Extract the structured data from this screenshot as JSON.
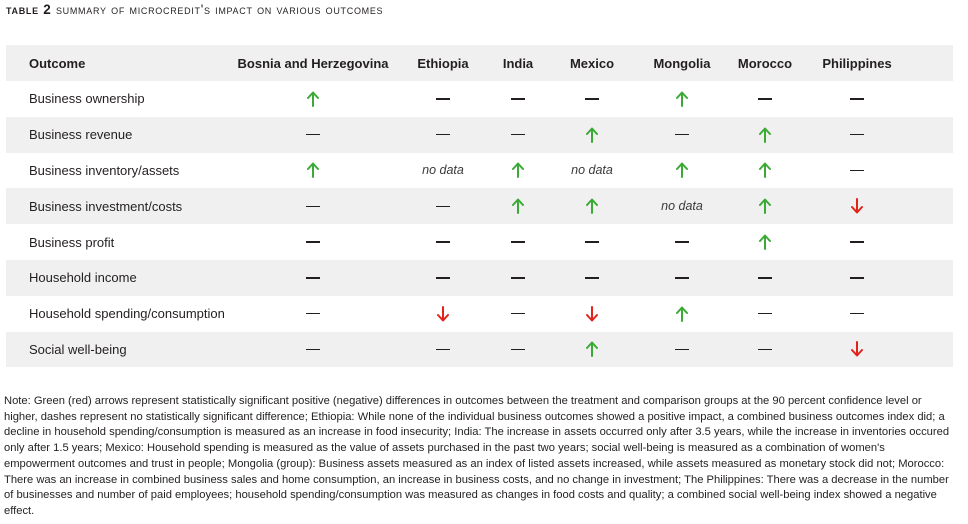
{
  "caption": {
    "label": "table 2",
    "title": "summary of microcredit's impact on various outcomes"
  },
  "colors": {
    "positive": "#3aaa35",
    "negative": "#e2231a",
    "shade": "#f0f0f0"
  },
  "table": {
    "headers": [
      "Outcome",
      "Bosnia and Herzegovina",
      "Ethiopia",
      "India",
      "Mexico",
      "Mongolia",
      "Morocco",
      "Philippines"
    ],
    "legend": {
      "up": "positive significant (green arrow)",
      "down": "negative significant (red arrow)",
      "dash": "no significant difference",
      "nodata": "no data"
    },
    "rows": [
      {
        "outcome": "Business ownership",
        "values": [
          "up",
          "dash",
          "dash",
          "dash",
          "up",
          "dash",
          "dash"
        ]
      },
      {
        "outcome": "Business revenue",
        "values": [
          "dash",
          "dash",
          "dash",
          "up",
          "dash",
          "up",
          "dash"
        ]
      },
      {
        "outcome": "Business inventory/assets",
        "values": [
          "up",
          "no data",
          "up",
          "no data",
          "up",
          "up",
          "dash"
        ]
      },
      {
        "outcome": "Business investment/costs",
        "values": [
          "dash",
          "dash",
          "up",
          "up",
          "no data",
          "up",
          "down"
        ]
      },
      {
        "outcome": "Business profit",
        "values": [
          "dash",
          "dash",
          "dash",
          "dash",
          "dash",
          "up",
          "dash"
        ]
      },
      {
        "outcome": "Household income",
        "values": [
          "dash",
          "dash",
          "dash",
          "dash",
          "dash",
          "dash",
          "dash"
        ]
      },
      {
        "outcome": "Household spending/consumption",
        "values": [
          "dash",
          "down",
          "dash",
          "down",
          "up",
          "dash",
          "dash"
        ]
      },
      {
        "outcome": "Social well-being",
        "values": [
          "dash",
          "dash",
          "dash",
          "up",
          "dash",
          "dash",
          "down"
        ]
      }
    ]
  },
  "note": "Note: Green (red) arrows represent statistically significant positive (negative) differences in outcomes between the treatment and comparison groups at the 90 percent confidence level or higher, dashes represent no statistically significant difference; Ethiopia: While none of the individual business outcomes showed a positive impact, a combined business outcomes index did; a decline in household spending/consumption is measured as an increase in food insecurity; India: The increase in assets occurred only after 3.5 years, while the increase in inventories occured only after 1.5 years; Mexico: Household spending is measured as the value of assets purchased in the past two years; social well-being is measured as a combination of women's empowerment outcomes and trust in people; Mongolia (group): Business assets measured as an index of listed assets increased, while assets measured as monetary stock did not; Morocco: There was an increase in combined business sales and home consumption, an increase in business costs, and no change in investment; The Philippines: There was a decrease in the number of businesses and number of paid employees; household spending/consumption was measured as changes in food costs and quality; a combined social well-being index showed a negative effect."
}
